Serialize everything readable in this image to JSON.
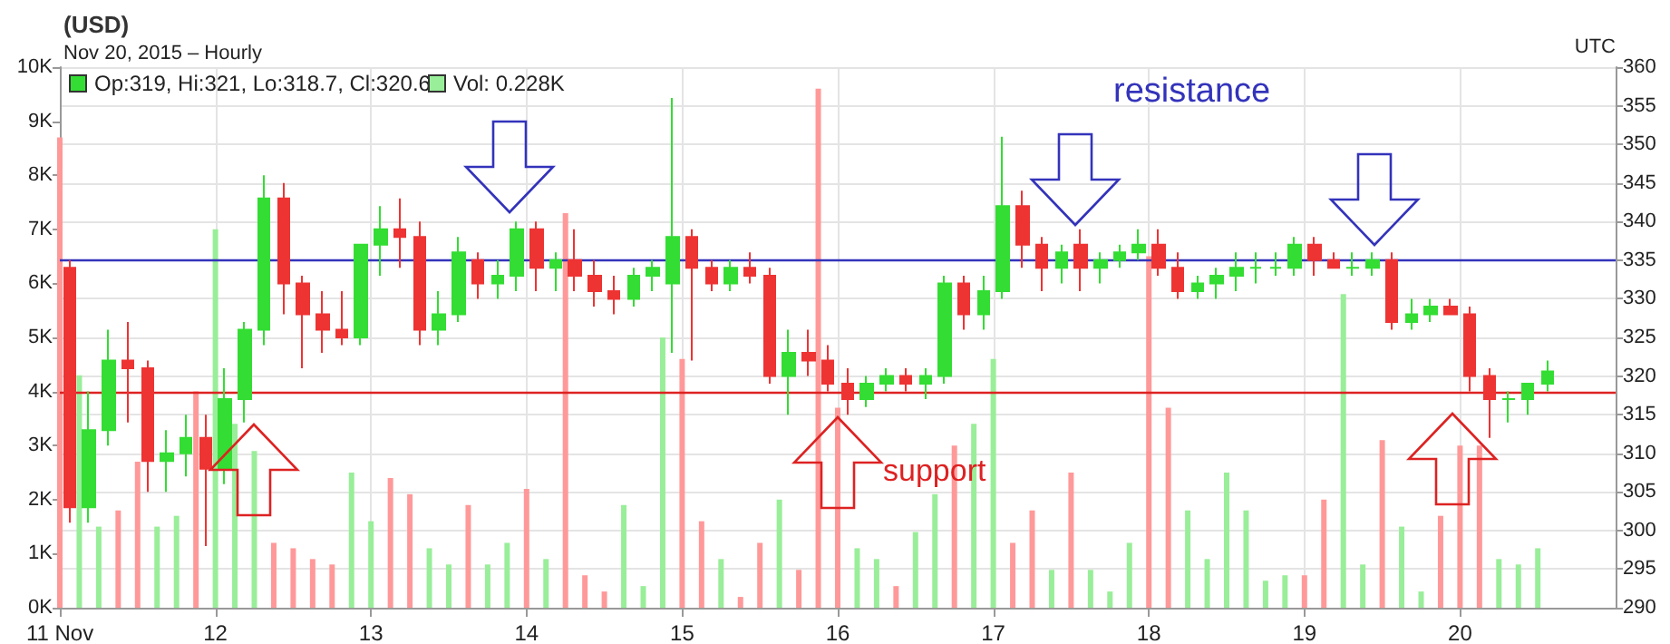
{
  "chart_data": {
    "type": "candlestick",
    "title": "(USD)",
    "subtitle": "Nov 20, 2015 – Hourly",
    "annotations": [
      "Op:319, Hi:321, Lo:318.7, Cl:320.6",
      "Vol: 0.228K",
      "UTC",
      "resistance",
      "support"
    ],
    "x": [
      "2015-11-11T01:30",
      "2015-11-11T04:30",
      "2015-11-11T07:30",
      "2015-11-11T10:30",
      "2015-11-11T13:30",
      "2015-11-11T16:30",
      "2015-11-11T19:30",
      "2015-11-11T22:30",
      "2015-11-12T01:30",
      "2015-11-12T04:30",
      "2015-11-12T07:30",
      "2015-11-12T10:30",
      "2015-11-12T13:30",
      "2015-11-12T16:30",
      "2015-11-12T19:30",
      "2015-11-12T22:30",
      "2015-11-13T01:30",
      "2015-11-13T04:30",
      "2015-11-13T07:30",
      "2015-11-13T10:30",
      "2015-11-13T13:30",
      "2015-11-13T16:30",
      "2015-11-13T19:30",
      "2015-11-13T22:30",
      "2015-11-14T01:30",
      "2015-11-14T04:30",
      "2015-11-14T07:30",
      "2015-11-14T10:30",
      "2015-11-14T13:30",
      "2015-11-14T16:30",
      "2015-11-14T19:30",
      "2015-11-14T22:30",
      "2015-11-15T01:30",
      "2015-11-15T04:30",
      "2015-11-15T07:30",
      "2015-11-15T10:30",
      "2015-11-15T13:30",
      "2015-11-15T16:30",
      "2015-11-15T19:30",
      "2015-11-15T22:30",
      "2015-11-16T01:30",
      "2015-11-16T04:30",
      "2015-11-16T07:30",
      "2015-11-16T10:30",
      "2015-11-16T13:30",
      "2015-11-16T16:30",
      "2015-11-16T19:30",
      "2015-11-16T22:30",
      "2015-11-17T01:30",
      "2015-11-17T04:30",
      "2015-11-17T07:30",
      "2015-11-17T10:30",
      "2015-11-17T13:30",
      "2015-11-17T16:30",
      "2015-11-17T19:30",
      "2015-11-17T22:30",
      "2015-11-18T01:30",
      "2015-11-18T04:30",
      "2015-11-18T07:30",
      "2015-11-18T10:30",
      "2015-11-18T13:30",
      "2015-11-18T16:30",
      "2015-11-18T19:30",
      "2015-11-18T22:30",
      "2015-11-19T01:30",
      "2015-11-19T04:30",
      "2015-11-19T07:30",
      "2015-11-19T10:30",
      "2015-11-19T13:30",
      "2015-11-19T16:30",
      "2015-11-19T19:30",
      "2015-11-19T22:30",
      "2015-11-20T01:30",
      "2015-11-20T04:30",
      "2015-11-20T07:30",
      "2015-11-20T10:30",
      "2015-11-20T13:30"
    ],
    "series": [
      {
        "type": "bar",
        "x": [
          "2015-11-11T00:00",
          "2015-11-11T03:00",
          "2015-11-11T06:00",
          "2015-11-11T09:00",
          "2015-11-11T12:00",
          "2015-11-11T15:00",
          "2015-11-11T18:00",
          "2015-11-11T21:00",
          "2015-11-12T00:00",
          "2015-11-12T03:00",
          "2015-11-12T06:00",
          "2015-11-12T09:00",
          "2015-11-12T12:00",
          "2015-11-12T15:00",
          "2015-11-12T18:00",
          "2015-11-12T21:00",
          "2015-11-13T00:00",
          "2015-11-13T03:00",
          "2015-11-13T06:00",
          "2015-11-13T09:00",
          "2015-11-13T12:00",
          "2015-11-13T15:00",
          "2015-11-13T18:00",
          "2015-11-13T21:00",
          "2015-11-14T00:00",
          "2015-11-14T03:00",
          "2015-11-14T06:00",
          "2015-11-14T09:00",
          "2015-11-14T12:00",
          "2015-11-14T15:00",
          "2015-11-14T18:00",
          "2015-11-14T21:00",
          "2015-11-15T00:00",
          "2015-11-15T03:00",
          "2015-11-15T06:00",
          "2015-11-15T09:00",
          "2015-11-15T12:00",
          "2015-11-15T15:00",
          "2015-11-15T18:00",
          "2015-11-15T21:00",
          "2015-11-16T00:00",
          "2015-11-16T03:00",
          "2015-11-16T06:00",
          "2015-11-16T09:00",
          "2015-11-16T12:00",
          "2015-11-16T15:00",
          "2015-11-16T18:00",
          "2015-11-16T21:00",
          "2015-11-17T00:00",
          "2015-11-17T03:00",
          "2015-11-17T06:00",
          "2015-11-17T09:00",
          "2015-11-17T12:00",
          "2015-11-17T15:00",
          "2015-11-17T18:00",
          "2015-11-17T21:00",
          "2015-11-18T00:00",
          "2015-11-18T03:00",
          "2015-11-18T06:00",
          "2015-11-18T09:00",
          "2015-11-18T12:00",
          "2015-11-18T15:00",
          "2015-11-18T18:00",
          "2015-11-18T21:00",
          "2015-11-19T00:00",
          "2015-11-19T03:00",
          "2015-11-19T06:00",
          "2015-11-19T09:00",
          "2015-11-19T12:00",
          "2015-11-19T15:00",
          "2015-11-19T18:00",
          "2015-11-19T21:00",
          "2015-11-20T00:00",
          "2015-11-20T03:00",
          "2015-11-20T06:00",
          "2015-11-20T09:00",
          "2015-11-20T12:00"
        ],
        "values": [
          8.7,
          4.3,
          1.5,
          1.8,
          2.7,
          1.5,
          1.7,
          4.0,
          7.0,
          3.4,
          2.9,
          1.2,
          1.1,
          0.9,
          0.8,
          2.5,
          1.6,
          2.4,
          2.1,
          1.1,
          0.8,
          1.9,
          0.8,
          1.2,
          2.2,
          0.9,
          7.3,
          0.6,
          0.3,
          1.9,
          0.4,
          5.0,
          4.6,
          1.6,
          0.9,
          0.2,
          1.2,
          2.0,
          0.7,
          9.6,
          3.7,
          1.1,
          0.9,
          0.4,
          1.4,
          2.1,
          3.0,
          3.4,
          4.6,
          1.2,
          1.8,
          0.7,
          2.5,
          0.7,
          0.3,
          1.2,
          6.5,
          3.7,
          1.8,
          0.9,
          2.5,
          1.8,
          0.5,
          0.6,
          0.6,
          2.0,
          5.8,
          0.8,
          3.1,
          1.5,
          0.3,
          1.7,
          3.0,
          3.0,
          0.9,
          0.8,
          1.1
        ],
        "colors": [
          "#ff9999",
          "#99ee99",
          "#99ee99",
          "#ff9999",
          "#ff9999",
          "#99ee99",
          "#99ee99",
          "#ff9999",
          "#99ee99",
          "#99ee99",
          "#99ee99",
          "#ff9999",
          "#ff9999",
          "#ff9999",
          "#ff9999",
          "#99ee99",
          "#99ee99",
          "#ff9999",
          "#ff9999",
          "#99ee99",
          "#99ee99",
          "#ff9999",
          "#99ee99",
          "#99ee99",
          "#ff9999",
          "#99ee99",
          "#ff9999",
          "#ff9999",
          "#ff9999",
          "#99ee99",
          "#99ee99",
          "#99ee99",
          "#ff9999",
          "#ff9999",
          "#99ee99",
          "#ff9999",
          "#ff9999",
          "#99ee99",
          "#ff9999",
          "#ff9999",
          "#ff9999",
          "#99ee99",
          "#99ee99",
          "#ff9999",
          "#99ee99",
          "#99ee99",
          "#ff9999",
          "#99ee99",
          "#99ee99",
          "#ff9999",
          "#ff9999",
          "#99ee99",
          "#ff9999",
          "#99ee99",
          "#99ee99",
          "#99ee99",
          "#ff9999",
          "#ff9999",
          "#99ee99",
          "#99ee99",
          "#99ee99",
          "#99ee99",
          "#99ee99",
          "#99ee99",
          "#ff9999",
          "#ff9999",
          "#99ee99",
          "#99ee99",
          "#ff9999",
          "#99ee99",
          "#99ee99",
          "#ff9999",
          "#ff9999",
          "#ff9999",
          "#99ee99",
          "#99ee99",
          "#99ee99"
        ]
      },
      {
        "axis": "y2",
        "ohlc": [
          [
            334,
            335,
            301,
            303
          ],
          [
            303,
            318,
            301,
            313
          ],
          [
            313,
            326,
            311,
            322
          ],
          [
            322,
            327,
            314,
            321
          ],
          [
            321,
            322,
            305,
            309
          ],
          [
            309,
            313,
            305,
            310
          ],
          [
            310,
            315,
            307,
            312
          ],
          [
            312,
            315,
            298,
            308
          ],
          [
            308,
            321,
            306,
            317
          ],
          [
            317,
            327,
            314,
            326
          ],
          [
            326,
            346,
            324,
            343
          ],
          [
            343,
            345,
            328,
            332
          ],
          [
            332,
            333,
            321,
            328
          ],
          [
            328,
            331,
            323,
            326
          ],
          [
            326,
            331,
            324,
            325
          ],
          [
            325,
            337,
            324,
            337
          ],
          [
            337,
            342,
            333,
            339
          ],
          [
            339,
            343,
            334,
            338
          ],
          [
            338,
            340,
            324,
            326
          ],
          [
            326,
            331,
            324,
            328
          ],
          [
            328,
            338,
            327,
            336
          ],
          [
            335,
            336,
            330,
            332
          ],
          [
            332,
            335,
            330,
            333
          ],
          [
            333,
            340,
            331,
            339
          ],
          [
            339,
            340,
            331,
            334
          ],
          [
            334,
            336,
            331,
            335
          ],
          [
            335,
            339,
            331,
            333
          ],
          [
            333,
            335,
            329,
            331
          ],
          [
            331,
            333,
            328,
            330
          ],
          [
            330,
            334,
            329,
            333
          ],
          [
            333,
            335,
            331,
            334
          ],
          [
            332,
            356,
            323,
            338
          ],
          [
            338,
            339,
            322,
            334
          ],
          [
            334,
            335,
            331,
            332
          ],
          [
            332,
            335,
            331,
            334
          ],
          [
            334,
            336,
            332,
            333
          ],
          [
            333,
            334,
            319,
            320
          ],
          [
            320,
            326,
            315,
            323
          ],
          [
            323,
            326,
            320,
            322
          ],
          [
            322,
            324,
            318,
            319
          ],
          [
            319,
            321,
            315,
            317
          ],
          [
            317,
            320,
            316,
            319
          ],
          [
            319,
            321,
            318,
            320
          ],
          [
            320,
            321,
            318,
            319
          ],
          [
            319,
            321,
            317,
            320
          ],
          [
            320,
            333,
            319,
            332
          ],
          [
            332,
            333,
            326,
            328
          ],
          [
            328,
            333,
            326,
            331
          ],
          [
            331,
            351,
            330,
            342
          ],
          [
            342,
            344,
            334,
            337
          ],
          [
            337,
            338,
            331,
            334
          ],
          [
            334,
            337,
            332,
            336
          ],
          [
            337,
            339,
            331,
            334
          ],
          [
            334,
            336,
            332,
            335
          ],
          [
            335,
            337,
            334,
            336
          ],
          [
            336,
            339,
            335,
            337
          ],
          [
            337,
            339,
            333,
            334
          ],
          [
            334,
            336,
            330,
            331
          ],
          [
            331,
            333,
            330,
            332
          ],
          [
            332,
            334,
            330,
            333
          ],
          [
            333,
            336,
            331,
            334
          ],
          [
            334,
            336,
            332,
            334
          ],
          [
            334,
            336,
            333,
            334
          ],
          [
            334,
            338,
            333,
            337
          ],
          [
            337,
            338,
            333,
            335
          ],
          [
            335,
            336,
            334,
            334
          ],
          [
            334,
            336,
            333,
            334
          ],
          [
            334,
            336,
            333,
            335
          ],
          [
            335,
            336,
            326,
            327
          ],
          [
            327,
            330,
            326,
            328
          ],
          [
            328,
            330,
            327,
            329
          ],
          [
            329,
            330,
            328,
            328
          ],
          [
            328,
            329,
            318,
            320
          ],
          [
            320,
            321,
            312,
            317
          ],
          [
            317,
            318,
            314,
            317
          ],
          [
            317,
            319,
            315,
            319
          ],
          [
            319,
            322,
            318,
            320.6
          ]
        ],
        "colors": [
          "#ee3333",
          "#33dd33",
          "#33dd33",
          "#ee3333",
          "#ee3333",
          "#33dd33",
          "#33dd33",
          "#ee3333",
          "#33dd33",
          "#33dd33",
          "#33dd33",
          "#ee3333",
          "#ee3333",
          "#ee3333",
          "#ee3333",
          "#33dd33",
          "#33dd33",
          "#ee3333",
          "#ee3333",
          "#33dd33",
          "#33dd33",
          "#ee3333",
          "#33dd33",
          "#33dd33",
          "#ee3333",
          "#33dd33",
          "#ee3333",
          "#ee3333",
          "#ee3333",
          "#33dd33",
          "#33dd33",
          "#33dd33",
          "#ee3333",
          "#ee3333",
          "#33dd33",
          "#ee3333",
          "#ee3333",
          "#33dd33",
          "#ee3333",
          "#ee3333",
          "#ee3333",
          "#33dd33",
          "#33dd33",
          "#ee3333",
          "#33dd33",
          "#33dd33",
          "#ee3333",
          "#33dd33",
          "#33dd33",
          "#ee3333",
          "#ee3333",
          "#33dd33",
          "#ee3333",
          "#33dd33",
          "#33dd33",
          "#33dd33",
          "#ee3333",
          "#ee3333",
          "#33dd33",
          "#33dd33",
          "#33dd33",
          "#33dd33",
          "#33dd33",
          "#33dd33",
          "#ee3333",
          "#ee3333",
          "#33dd33",
          "#33dd33",
          "#ee3333",
          "#33dd33",
          "#33dd33",
          "#ee3333",
          "#ee3333",
          "#ee3333",
          "#33dd33",
          "#33dd33",
          "#33dd33"
        ]
      }
    ],
    "xlim": [
      "2015-11-11T00:00",
      "2015-11-21T00:00"
    ],
    "xticks": [
      {
        "value": "2015-11-11",
        "label": "11 Nov"
      },
      {
        "value": "2015-11-12",
        "label": "12"
      },
      {
        "value": "2015-11-13",
        "label": "13"
      },
      {
        "value": "2015-11-14",
        "label": "14"
      },
      {
        "value": "2015-11-15",
        "label": "15"
      },
      {
        "value": "2015-11-16",
        "label": "16"
      },
      {
        "value": "2015-11-17",
        "label": "17"
      },
      {
        "value": "2015-11-18",
        "label": "18"
      },
      {
        "value": "2015-11-19",
        "label": "19"
      },
      {
        "value": "2015-11-20",
        "label": "20"
      }
    ],
    "ylim": [
      0,
      10
    ],
    "yticks": [
      {
        "value": 0,
        "label": "0K"
      },
      {
        "value": 1,
        "label": "1K"
      },
      {
        "value": 2,
        "label": "2K"
      },
      {
        "value": 3,
        "label": "3K"
      },
      {
        "value": 4,
        "label": "4K"
      },
      {
        "value": 5,
        "label": "5K"
      },
      {
        "value": 6,
        "label": "6K"
      },
      {
        "value": 7,
        "label": "7K"
      },
      {
        "value": 8,
        "label": "8K"
      },
      {
        "value": 9,
        "label": "9K"
      },
      {
        "value": 10,
        "label": "10K"
      }
    ],
    "y2lim": [
      290,
      360
    ],
    "y2ticks": [
      290,
      295,
      300,
      305,
      310,
      315,
      320,
      325,
      330,
      335,
      340,
      345,
      350,
      355,
      360
    ],
    "ref_lines": [
      {
        "axis": "y2",
        "value": 335,
        "color": "#3333bb"
      },
      {
        "axis": "y2",
        "value": 318,
        "color": "#dd2222"
      }
    ],
    "grid": true
  }
}
